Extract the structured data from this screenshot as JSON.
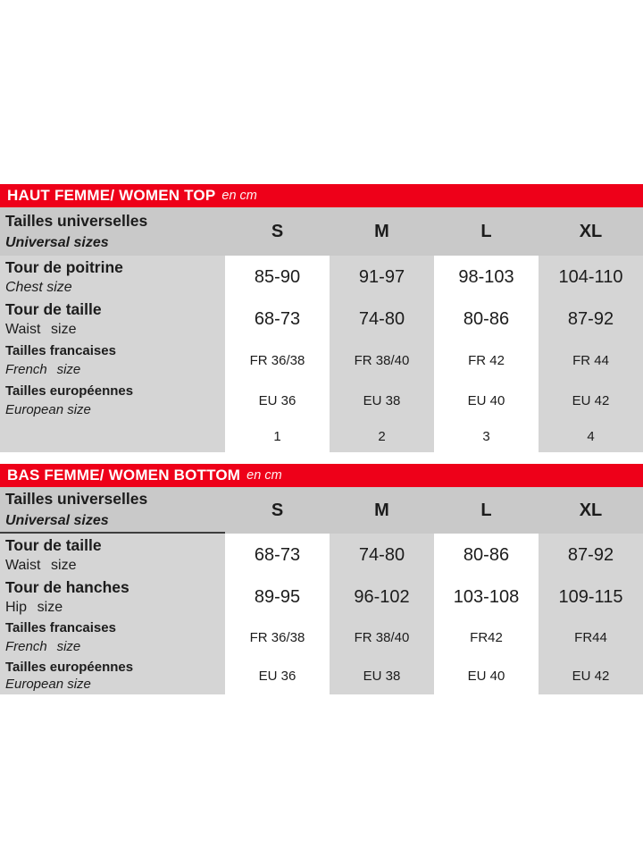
{
  "colors": {
    "accent_red": "#ee0019",
    "header_row_gray": "#c9c9c9",
    "cell_gray": "#d5d5d5",
    "text": "#1c1c1c",
    "title_text": "#ffffff"
  },
  "table_top": {
    "title": "HAUT FEMME/ WOMEN TOP",
    "unit": "en cm",
    "universal": {
      "fr": "Tailles universelles",
      "en": "Universal sizes"
    },
    "sizes": [
      "S",
      "M",
      "L",
      "XL"
    ],
    "rows": {
      "chest": {
        "fr": "Tour de poitrine",
        "en": "Chest size",
        "values": [
          "85-90",
          "91-97",
          "98-103",
          "104-110"
        ]
      },
      "waist": {
        "fr": "Tour de taille",
        "en": "Waist size",
        "values": [
          "68-73",
          "74-80",
          "80-86",
          "87-92"
        ]
      },
      "french": {
        "fr": "Tailles francaises",
        "en": "French size",
        "values": [
          "FR 36/38",
          "FR 38/40",
          "FR 42",
          "FR 44"
        ]
      },
      "european": {
        "fr": "Tailles européennes",
        "en": "European size",
        "values": [
          "EU 36",
          "EU 38",
          "EU 40",
          "EU 42"
        ]
      },
      "numbers": {
        "values": [
          "1",
          "2",
          "3",
          "4"
        ]
      }
    }
  },
  "table_bottom": {
    "title": "BAS FEMME/ WOMEN BOTTOM",
    "unit": "en cm",
    "universal": {
      "fr": "Tailles universelles",
      "en": "Universal sizes"
    },
    "sizes": [
      "S",
      "M",
      "L",
      "XL"
    ],
    "rows": {
      "waist": {
        "fr": "Tour de taille",
        "en": "Waist size",
        "values": [
          "68-73",
          "74-80",
          "80-86",
          "87-92"
        ]
      },
      "hip": {
        "fr": "Tour de hanches",
        "en": "Hip size",
        "values": [
          "89-95",
          "96-102",
          "103-108",
          "109-115"
        ]
      },
      "french": {
        "fr": "Tailles francaises",
        "en": "French size",
        "values": [
          "FR 36/38",
          "FR 38/40",
          "FR42",
          "FR44"
        ]
      },
      "european": {
        "fr": "Tailles européennes",
        "en": "European size",
        "values": [
          "EU 36",
          "EU 38",
          "EU 40",
          "EU 42"
        ]
      }
    }
  }
}
